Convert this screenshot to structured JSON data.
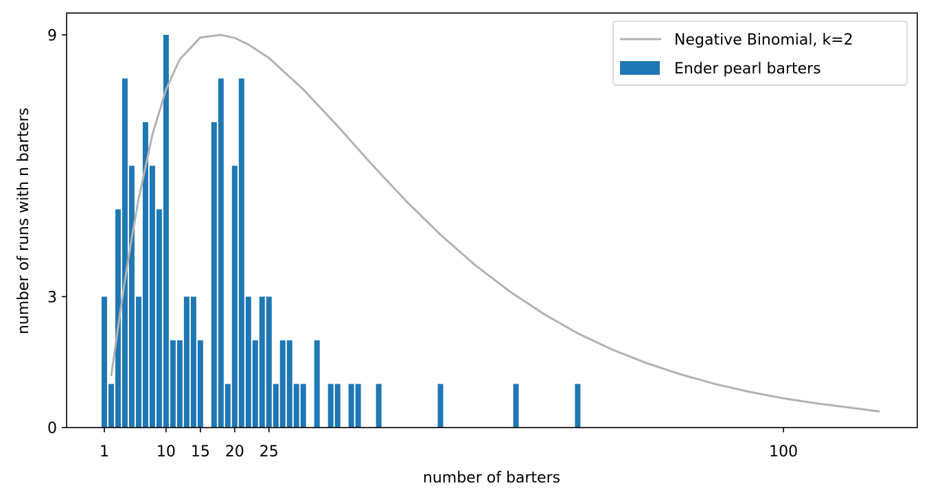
{
  "chart_data": {
    "type": "bar",
    "title": "",
    "xlabel": "number of barters",
    "ylabel": "number of runs with n barters",
    "xlim": [
      -4.5,
      119.5
    ],
    "ylim": [
      0,
      9.5
    ],
    "xticks": [
      1,
      10,
      15,
      20,
      25,
      100
    ],
    "yticks": [
      0,
      3,
      9
    ],
    "legend_position": "top-right",
    "grid": false,
    "series": [
      {
        "name": "Ender pearl barters",
        "kind": "bar",
        "color": "#1f77b4",
        "x": [
          1,
          2,
          3,
          4,
          5,
          6,
          7,
          8,
          9,
          10,
          11,
          12,
          13,
          14,
          15,
          17,
          18,
          19,
          20,
          21,
          22,
          23,
          24,
          25,
          26,
          27,
          28,
          29,
          30,
          32,
          34,
          35,
          37,
          38,
          41,
          50,
          61,
          70
        ],
        "values": [
          3,
          1,
          5,
          8,
          6,
          3,
          7,
          6,
          5,
          9,
          2,
          2,
          3,
          3,
          2,
          7,
          8,
          1,
          6,
          8,
          3,
          2,
          3,
          3,
          1,
          2,
          2,
          1,
          1,
          2,
          1,
          1,
          1,
          1,
          1,
          1,
          1,
          1
        ]
      },
      {
        "name": "Negative Binomial, k=2",
        "kind": "line",
        "color": "#b2b2b2",
        "x": [
          2,
          3,
          4,
          5,
          6,
          8,
          10,
          12,
          15,
          18,
          20,
          22,
          25,
          30,
          35,
          40,
          45,
          50,
          55,
          60,
          65,
          70,
          75,
          80,
          85,
          90,
          95,
          100,
          105,
          110,
          114
        ],
        "values": [
          1.18,
          2.3,
          3.37,
          4.35,
          5.24,
          6.71,
          7.75,
          8.44,
          8.94,
          9.0,
          8.93,
          8.78,
          8.47,
          7.75,
          6.91,
          6.03,
          5.19,
          4.42,
          3.73,
          3.13,
          2.61,
          2.16,
          1.79,
          1.48,
          1.22,
          1.0,
          0.82,
          0.67,
          0.55,
          0.45,
          0.37
        ]
      }
    ]
  }
}
